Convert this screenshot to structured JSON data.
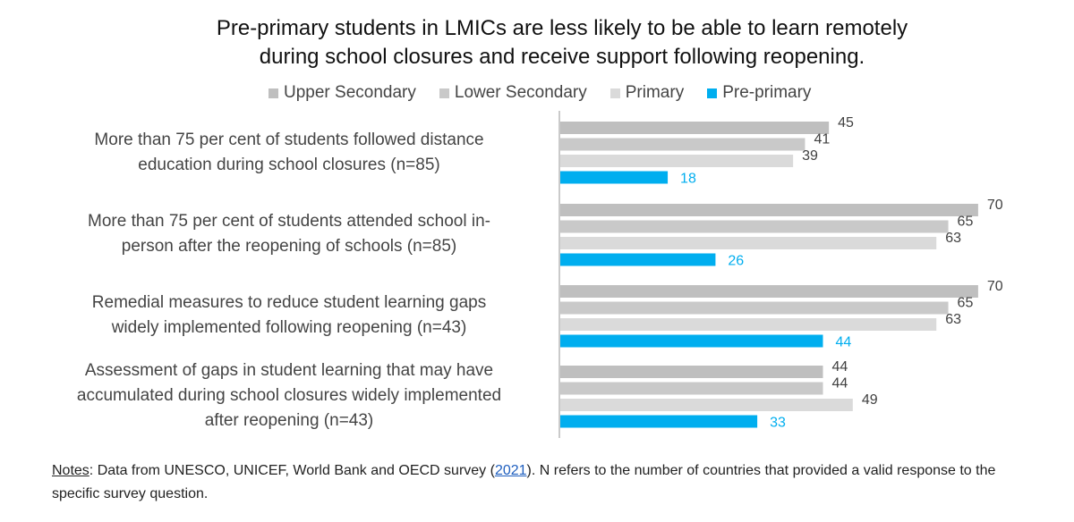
{
  "chart_data": {
    "type": "bar",
    "orientation": "horizontal",
    "title_lines": [
      "Pre-primary students in LMICs are less likely to be able to learn remotely",
      "during school closures and receive support following reopening."
    ],
    "legend": [
      "Upper Secondary",
      "Lower Secondary",
      "Primary",
      "Pre-primary"
    ],
    "legend_placement": "top",
    "grid": false,
    "xlim": [
      0,
      72
    ],
    "categories": [
      [
        "More than 75 per cent of students followed distance",
        "education during school closures (n=85)"
      ],
      [
        "More than 75 per cent of students attended school in-",
        "person after the reopening of schools (n=85)"
      ],
      [
        "Remedial measures to reduce student learning gaps",
        "widely implemented following reopening (n=43)"
      ],
      [
        "Assessment of gaps in student learning that may have",
        "accumulated during school closures widely implemented",
        "after reopening (n=43)"
      ]
    ],
    "series": [
      {
        "name": "Upper Secondary",
        "color": "#bfbfbf",
        "label_color": "#404040",
        "values": [
          45,
          70,
          70,
          44
        ]
      },
      {
        "name": "Lower Secondary",
        "color": "#c9c9c9",
        "label_color": "#404040",
        "values": [
          41,
          65,
          65,
          44
        ]
      },
      {
        "name": "Primary",
        "color": "#dadada",
        "label_color": "#404040",
        "values": [
          39,
          63,
          63,
          49
        ]
      },
      {
        "name": "Pre-primary",
        "color": "#00aeef",
        "label_color": "#00aeef",
        "values": [
          18,
          26,
          44,
          33
        ]
      }
    ]
  },
  "notes": {
    "label": "Notes",
    "text_before": ": Data from UNESCO, UNICEF, World Bank and OECD survey (",
    "link": "2021",
    "text_after": "). N refers to the number of countries that provided a valid response to the specific survey question."
  }
}
